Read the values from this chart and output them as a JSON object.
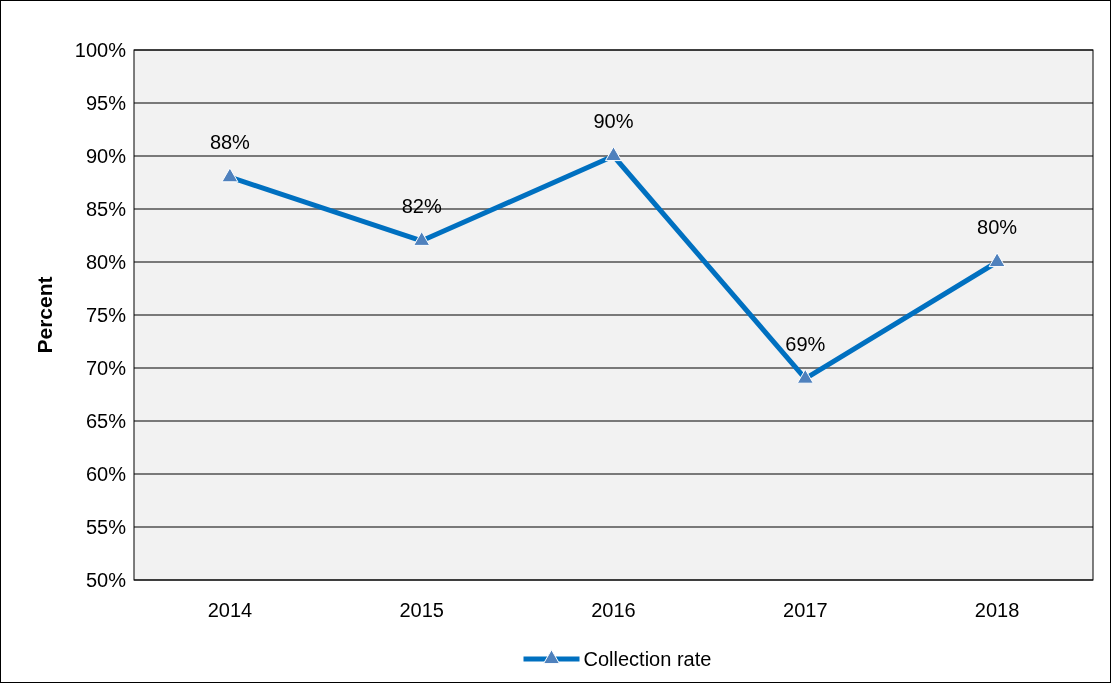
{
  "chart_data": {
    "type": "line",
    "ylabel": "Percent",
    "categories": [
      "2014",
      "2015",
      "2016",
      "2017",
      "2018"
    ],
    "series": [
      {
        "name": "Collection rate",
        "color": "#0070c0",
        "values": [
          88,
          82,
          90,
          69,
          80
        ],
        "value_labels": [
          "88%",
          "82%",
          "90%",
          "69%",
          "80%"
        ]
      }
    ],
    "ylim": [
      50,
      100
    ],
    "yticks": [
      {
        "value": 50,
        "label": "50%"
      },
      {
        "value": 55,
        "label": "55%"
      },
      {
        "value": 60,
        "label": "60%"
      },
      {
        "value": 65,
        "label": "65%"
      },
      {
        "value": 70,
        "label": "70%"
      },
      {
        "value": 75,
        "label": "75%"
      },
      {
        "value": 80,
        "label": "80%"
      },
      {
        "value": 85,
        "label": "85%"
      },
      {
        "value": 90,
        "label": "90%"
      },
      {
        "value": 95,
        "label": "95%"
      },
      {
        "value": 100,
        "label": "100%"
      }
    ],
    "grid": "y",
    "legend": "bottom",
    "marker": "triangle",
    "line_style": "solid"
  }
}
